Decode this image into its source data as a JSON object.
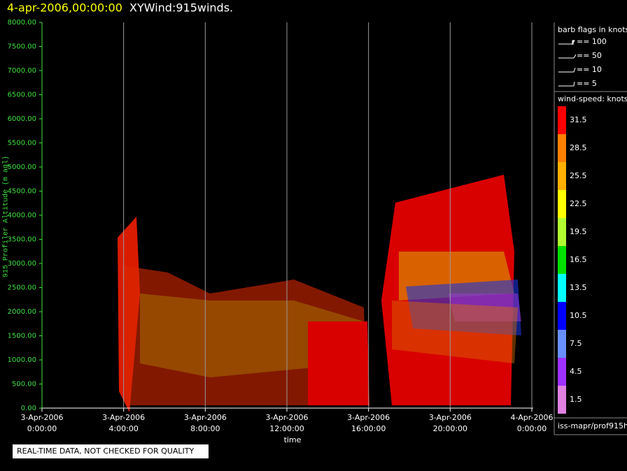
{
  "header": {
    "date": "4-apr-2006,00:00:00",
    "title": "XYWind:915winds."
  },
  "y_axis": {
    "label": "915 Profiler Altitude (m agl)",
    "ticks": [
      "0.00",
      "500.00",
      "1000.00",
      "1500.00",
      "2000.00",
      "2500.00",
      "3000.00",
      "3500.00",
      "4000.00",
      "4500.00",
      "5000.00",
      "5500.00",
      "6000.00",
      "6500.00",
      "7000.00",
      "7500.00",
      "8000.00"
    ]
  },
  "x_axis": {
    "label": "time",
    "ticks": [
      [
        "3-Apr-2006",
        "0:00:00"
      ],
      [
        "3-Apr-2006",
        "4:00:00"
      ],
      [
        "3-Apr-2006",
        "8:00:00"
      ],
      [
        "3-Apr-2006",
        "12:00:00"
      ],
      [
        "3-Apr-2006",
        "16:00:00"
      ],
      [
        "3-Apr-2006",
        "20:00:00"
      ],
      [
        "4-Apr-2006",
        "0:00:00"
      ]
    ]
  },
  "legend": {
    "barb_title": "barb flags in knots",
    "barbs": [
      "== 100",
      "== 50",
      "== 10",
      "== 5"
    ],
    "speed_title": "wind-speed: knots",
    "speed_labels": [
      "31.5",
      "28.5",
      "25.5",
      "22.5",
      "19.5",
      "16.5",
      "13.5",
      "10.5",
      "7.5",
      "4.5",
      "1.5"
    ],
    "speed_colors": [
      "#ff0000",
      "#ff8000",
      "#ffb000",
      "#ffff00",
      "#b0ff30",
      "#00e000",
      "#00ffff",
      "#0000ff",
      "#6a90ff",
      "#a030ff",
      "#e080e0"
    ],
    "source": "iss-mapr/prof915h"
  },
  "note": "REAL-TIME DATA, NOT CHECKED FOR QUALITY"
}
